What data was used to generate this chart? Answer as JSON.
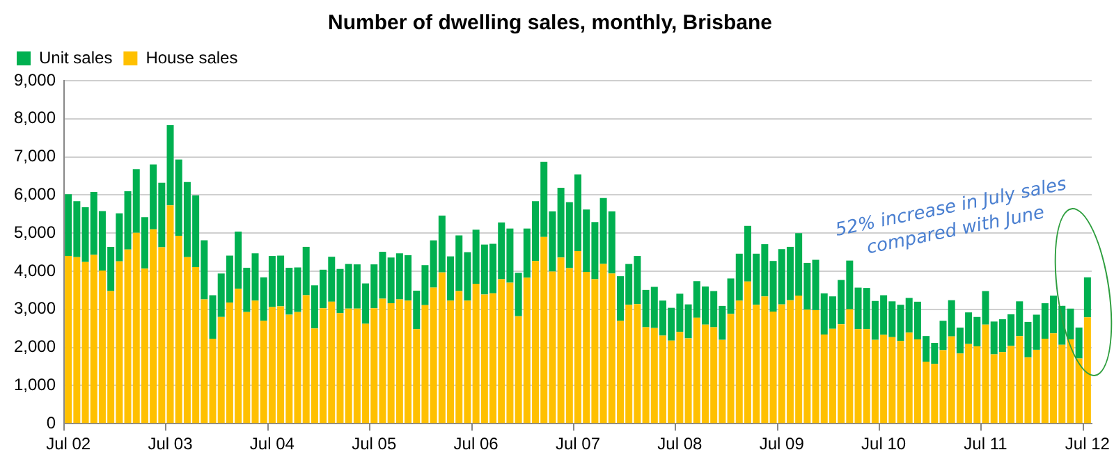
{
  "chart_data": {
    "type": "bar",
    "title": "Number of dwelling sales, monthly, Brisbane",
    "stacked": true,
    "legend": "top",
    "grid": "y",
    "categories": [
      "Jul 02",
      null,
      null,
      null,
      null,
      null,
      null,
      null,
      null,
      null,
      null,
      null,
      "Jul 03",
      null,
      null,
      null,
      null,
      null,
      null,
      null,
      null,
      null,
      null,
      null,
      "Jul 04",
      null,
      null,
      null,
      null,
      null,
      null,
      null,
      null,
      null,
      null,
      null,
      "Jul 05",
      null,
      null,
      null,
      null,
      null,
      null,
      null,
      null,
      null,
      null,
      null,
      "Jul 06",
      null,
      null,
      null,
      null,
      null,
      null,
      null,
      null,
      null,
      null,
      null,
      "Jul 07",
      null,
      null,
      null,
      null,
      null,
      null,
      null,
      null,
      null,
      null,
      null,
      "Jul 08",
      null,
      null,
      null,
      null,
      null,
      null,
      null,
      null,
      null,
      null,
      null,
      "Jul 09",
      null,
      null,
      null,
      null,
      null,
      null,
      null,
      null,
      null,
      null,
      null,
      "Jul 10",
      null,
      null,
      null,
      null,
      null,
      null,
      null,
      null,
      null,
      null,
      null,
      "Jul 11",
      null,
      null,
      null,
      null,
      null,
      null,
      null,
      null,
      null,
      null,
      null,
      "Jul 12"
    ],
    "series": [
      {
        "name": "House sales",
        "color": "#ffc000",
        "values": [
          4400,
          4370,
          4240,
          4430,
          4020,
          3480,
          4260,
          4570,
          5010,
          4070,
          5100,
          4630,
          5730,
          4930,
          4370,
          4110,
          3260,
          2230,
          2800,
          3180,
          3540,
          2930,
          3230,
          2700,
          3060,
          3080,
          2860,
          2930,
          3370,
          2500,
          3030,
          3200,
          2900,
          3020,
          3020,
          2620,
          3030,
          3280,
          3160,
          3260,
          3230,
          2480,
          3110,
          3570,
          3970,
          3230,
          3480,
          3230,
          3670,
          3390,
          3420,
          3790,
          3700,
          2820,
          3830,
          4270,
          4900,
          3990,
          4360,
          4080,
          4530,
          3980,
          3790,
          4190,
          3940,
          2700,
          3120,
          3140,
          2530,
          2510,
          2310,
          2180,
          2410,
          2240,
          2780,
          2600,
          2530,
          2200,
          2880,
          3230,
          3730,
          3120,
          3340,
          2940,
          3130,
          3240,
          3360,
          2990,
          2980,
          2340,
          2490,
          2610,
          3000,
          2480,
          2480,
          2200,
          2330,
          2270,
          2170,
          2390,
          2210,
          1630,
          1570,
          1930,
          2290,
          1840,
          2090,
          2030,
          2600,
          1820,
          1880,
          2040,
          2300,
          1740,
          1940,
          2230,
          2370,
          2070,
          2210,
          1710,
          2790
        ]
      },
      {
        "name": "Unit sales",
        "color": "#00b050",
        "values": [
          1620,
          1470,
          1440,
          1650,
          1560,
          1160,
          1260,
          1530,
          1670,
          1350,
          1700,
          1690,
          2100,
          2000,
          1970,
          1880,
          1550,
          1140,
          1140,
          1230,
          1500,
          1160,
          1240,
          1140,
          1340,
          1330,
          1230,
          1170,
          1270,
          1130,
          1010,
          1180,
          1160,
          1170,
          1160,
          1060,
          1150,
          1230,
          1200,
          1210,
          1190,
          1010,
          1050,
          1240,
          1490,
          1160,
          1460,
          1270,
          1420,
          1310,
          1300,
          1490,
          1420,
          1140,
          1290,
          1570,
          1970,
          1580,
          1830,
          1730,
          2010,
          1640,
          1500,
          1730,
          1630,
          1170,
          1070,
          1260,
          980,
          1080,
          920,
          860,
          1000,
          890,
          960,
          1000,
          950,
          890,
          930,
          1230,
          1460,
          1340,
          1370,
          1330,
          1450,
          1400,
          1640,
          1230,
          1320,
          1080,
          850,
          1160,
          1280,
          1090,
          1080,
          1020,
          1040,
          940,
          950,
          910,
          990,
          670,
          550,
          770,
          950,
          680,
          830,
          770,
          880,
          860,
          860,
          830,
          910,
          930,
          920,
          930,
          990,
          1020,
          810,
          810,
          1050
        ]
      }
    ],
    "ylim": [
      0,
      9000
    ],
    "yticks": [
      0,
      {
        "value": 1000,
        "label": "1,000"
      },
      {
        "value": 2000,
        "label": "2,000"
      },
      {
        "value": 3000,
        "label": "3,000"
      },
      {
        "value": 4000,
        "label": "4,000"
      },
      {
        "value": 5000,
        "label": "5,000"
      },
      {
        "value": 6000,
        "label": "6,000"
      },
      {
        "value": 7000,
        "label": "7,000"
      },
      {
        "value": 8000,
        "label": "8,000"
      },
      {
        "value": 9000,
        "label": "9,000"
      }
    ],
    "annotations": [
      {
        "text": "52% increase in July sales compared with June",
        "x": "Jul 12",
        "y": 3840
      }
    ]
  }
}
